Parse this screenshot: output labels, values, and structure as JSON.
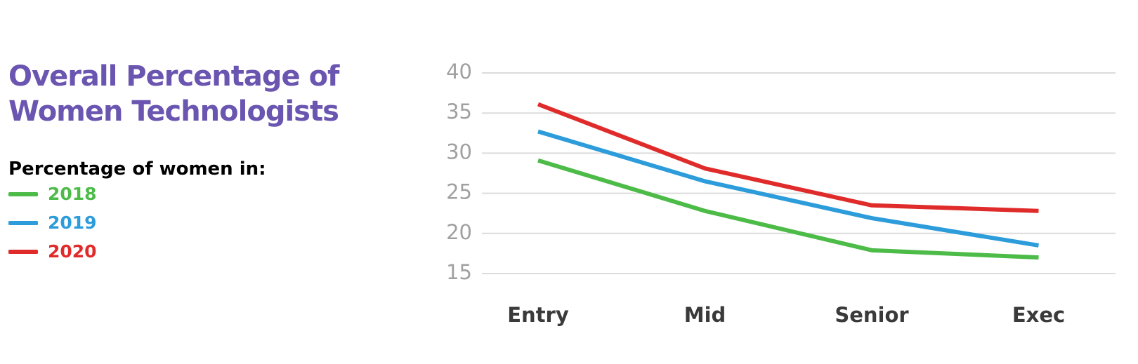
{
  "chart_data": {
    "type": "line",
    "title": "Overall Percentage of Women Technologists",
    "legend_title": "Percentage of women in:",
    "categories": [
      "Entry",
      "Mid",
      "Senior",
      "Exec"
    ],
    "series": [
      {
        "name": "2018",
        "color": "#4cbb47",
        "values": [
          29.1,
          22.8,
          17.9,
          17.0
        ]
      },
      {
        "name": "2019",
        "color": "#2d9cdb",
        "values": [
          32.7,
          26.5,
          21.9,
          18.5
        ]
      },
      {
        "name": "2020",
        "color": "#e02b2b",
        "values": [
          36.1,
          28.1,
          23.5,
          22.8
        ]
      }
    ],
    "ylim": [
      15,
      40
    ],
    "yticks": [
      15,
      20,
      25,
      30,
      35,
      40
    ],
    "grid": true,
    "legend": "left"
  }
}
